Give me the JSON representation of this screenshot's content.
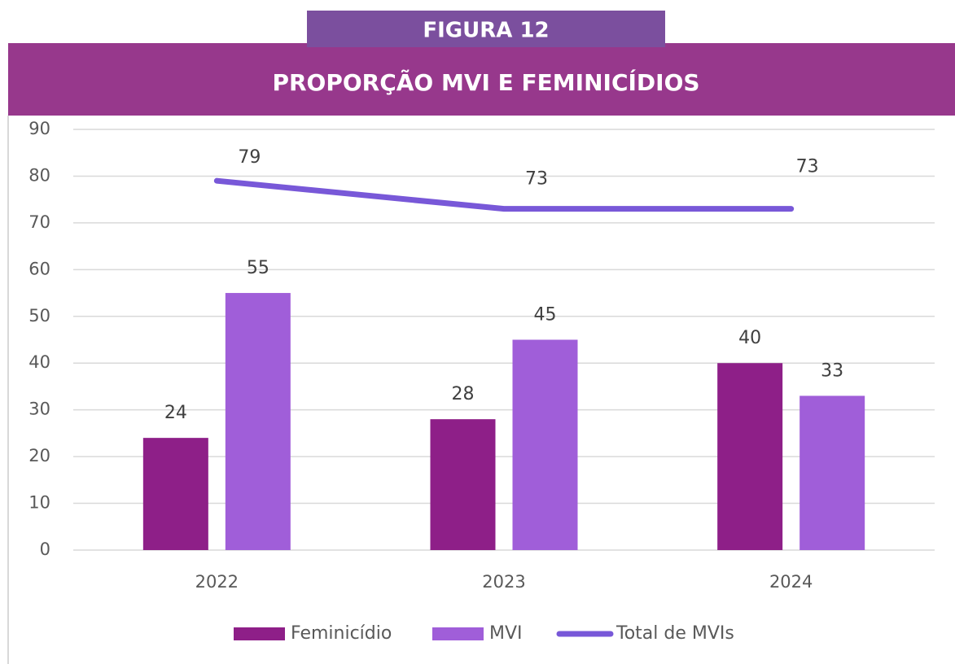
{
  "chart_data": {
    "type": "bar",
    "label": "FIGURA 12",
    "title": "PROPORÇÃO MVI E FEMINICÍDIOS",
    "categories": [
      "2022",
      "2023",
      "2024"
    ],
    "series": [
      {
        "name": "Feminicídio",
        "type": "bar",
        "color": "#8e1f88",
        "values": [
          24,
          28,
          40
        ]
      },
      {
        "name": "MVI",
        "type": "bar",
        "color": "#a05ed9",
        "values": [
          55,
          45,
          33
        ]
      },
      {
        "name": "Total de MVIs",
        "type": "line",
        "color": "#7858d8",
        "values": [
          79,
          73,
          73
        ]
      }
    ],
    "ylim": [
      0,
      90
    ],
    "yticks": [
      0,
      10,
      20,
      30,
      40,
      50,
      60,
      70,
      80,
      90
    ],
    "grid": true,
    "legend": "bottom"
  }
}
